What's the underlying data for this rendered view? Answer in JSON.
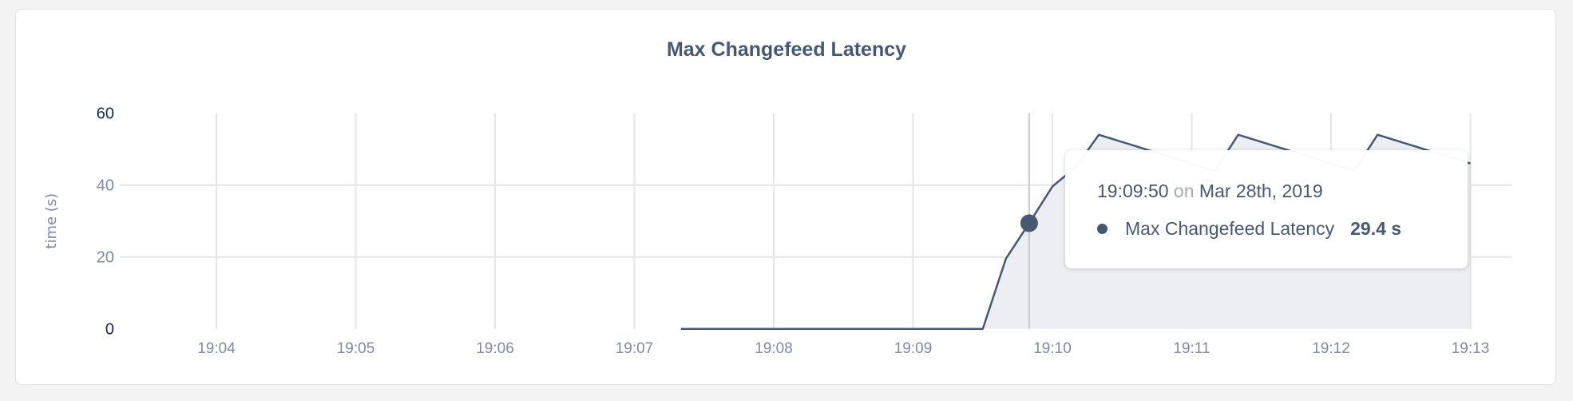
{
  "chart_data": {
    "type": "area",
    "title": "Max Changefeed Latency",
    "ylabel": "time (s)",
    "xlabel": "",
    "ylim": [
      0,
      60
    ],
    "yticks": [
      "0",
      "20",
      "40",
      "60"
    ],
    "xticks": [
      "19:04",
      "19:05",
      "19:06",
      "19:07",
      "19:08",
      "19:09",
      "19:10",
      "19:11",
      "19:12",
      "19:13"
    ],
    "grid": true,
    "color": "#475872",
    "fill": "#eceef3",
    "series": [
      {
        "name": "Max Changefeed Latency",
        "x": [
          "19:07:20",
          "19:09:30",
          "19:09:40",
          "19:09:50",
          "19:10:00",
          "19:10:10",
          "19:10:20",
          "19:10:30",
          "19:10:40",
          "19:10:50",
          "19:11:00",
          "19:11:10",
          "19:11:20",
          "19:11:30",
          "19:11:40",
          "19:11:50",
          "19:12:00",
          "19:12:10",
          "19:12:20",
          "19:12:30",
          "19:12:40",
          "19:12:50",
          "19:13:00"
        ],
        "y": [
          0,
          0,
          19.5,
          29.4,
          39.6,
          45,
          54,
          52,
          50,
          48,
          46,
          44,
          54,
          52,
          50,
          48,
          46,
          44,
          54,
          52,
          50,
          48,
          46
        ]
      }
    ]
  },
  "tooltip": {
    "time": "19:09:50",
    "on": "on",
    "date": "Mar 28th, 2019",
    "series": "Max Changefeed Latency",
    "value": "29.4 s",
    "hover_x": "19:09:50"
  }
}
